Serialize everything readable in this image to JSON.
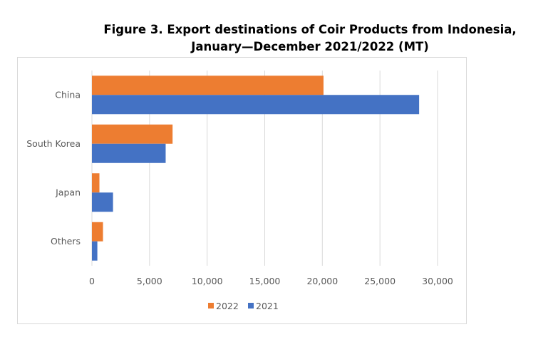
{
  "chart_data": {
    "type": "bar",
    "orientation": "horizontal",
    "title_line1": "Figure 3. Export destinations of Coir Products from Indonesia,",
    "title_line2": "January—December 2021/2022 (MT)",
    "categories": [
      "China",
      "South Korea",
      "Japan",
      "Others"
    ],
    "series": [
      {
        "name": "2022",
        "color": "#ed7d31",
        "values": [
          20100,
          7000,
          650,
          960
        ]
      },
      {
        "name": "2021",
        "color": "#4472c4",
        "values": [
          28400,
          6400,
          1830,
          470
        ]
      }
    ],
    "xlim": [
      0,
      30000
    ],
    "xticks": [
      0,
      5000,
      10000,
      15000,
      20000,
      25000,
      30000
    ],
    "xtick_labels": [
      "0",
      "5,000",
      "10,000",
      "15,000",
      "20,000",
      "25,000",
      "30,000"
    ],
    "grid": true,
    "legend": "bottom",
    "xlabel": "",
    "ylabel": ""
  }
}
